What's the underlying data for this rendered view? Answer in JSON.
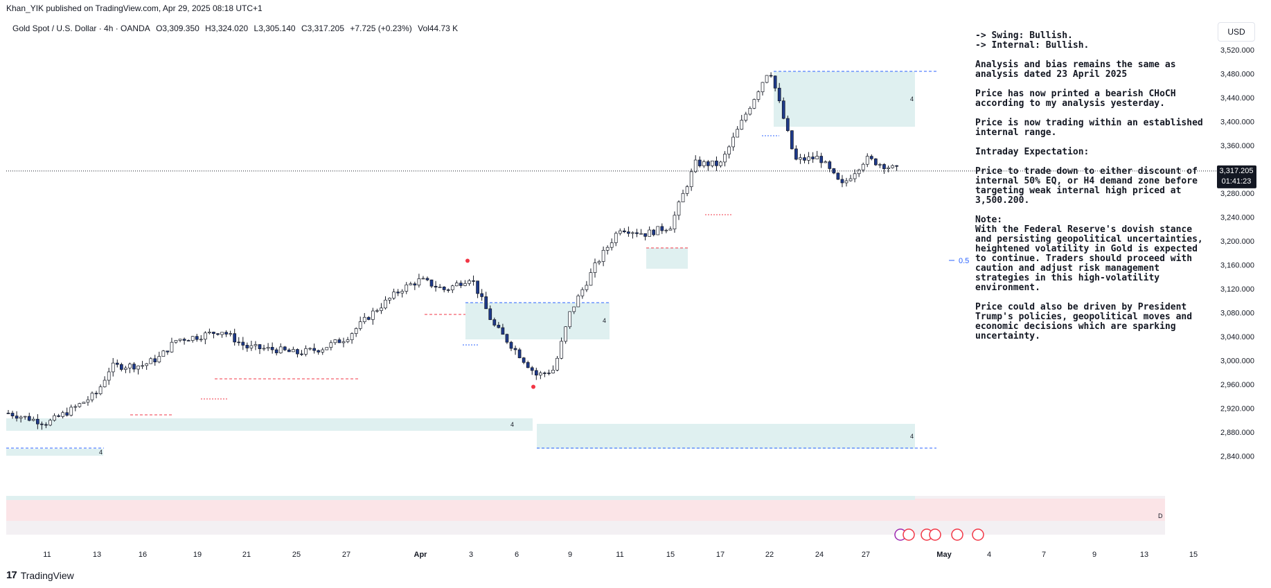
{
  "header": {
    "published_line": "Khan_YIK published on TradingView.com, Apr 29, 2025 08:18 UTC+1"
  },
  "legend": {
    "symbol": "Gold Spot / U.S. Dollar · 4h · OANDA",
    "open": "O3,309.350",
    "high": "H3,324.020",
    "low": "L3,305.140",
    "close": "C3,317.205",
    "change": "+7.725 (+0.23%)",
    "volume": "Vol44.73 K"
  },
  "currency_button": "USD",
  "price_label": {
    "price": "3,317.205",
    "countdown": "01:41:23"
  },
  "fib_label": "0.5",
  "zone_marker": "4",
  "range_marker": "D",
  "notes": [
    "-> Swing:  Bullish.\n-> Internal:  Bullish.",
    "Analysis and bias remains the same as analysis dated 23 April 2025",
    "Price has now printed a bearish CHoCH according to my analysis yesterday.",
    "Price is now trading within an established internal range.",
    "Intraday Expectation:",
    "Price to trade down to either discount of internal 50% EQ, or H4 demand zone before targeting weak internal high priced at 3,500.200.",
    "Note:\nWith the Federal Reserve's dovish stance and persisting geopolitical uncertainties, heightened volatility in Gold is expected to continue. Traders should proceed with caution and adjust risk management strategies in this high-volatility environment.",
    "Price could also be driven by President Trump's policies, geopolitical moves and economic decisions which are sparking uncertainty."
  ],
  "footer": {
    "brand": "TradingView"
  },
  "colors": {
    "up": "#ffffff",
    "down": "#1e3a8a",
    "zone": "#dff0f0",
    "supply_pink": "#fbe2e4",
    "dash_blue": "#2962ff",
    "dash_red": "#f23645"
  },
  "chart_data": {
    "type": "candlestick",
    "timeframe": "4h",
    "y_ticks": [
      3520,
      3480,
      3440,
      3400,
      3360,
      3320,
      3280,
      3240,
      3200,
      3160,
      3120,
      3080,
      3040,
      3000,
      2960,
      2920,
      2880,
      2840
    ],
    "y_tick_labels": [
      "3,520.000",
      "3,480.000",
      "3,440.000",
      "3,400.000",
      "3,360.000",
      "3,320.000",
      "3,280.000",
      "3,240.000",
      "3,200.000",
      "3,160.000",
      "3,120.000",
      "3,080.000",
      "3,040.000",
      "3,000.000",
      "2,960.000",
      "2,920.000",
      "2,880.000",
      "2,840.000"
    ],
    "x_tick_labels": [
      "11",
      "13",
      "16",
      "19",
      "21",
      "25",
      "27",
      "Apr",
      "3",
      "6",
      "9",
      "11",
      "15",
      "17",
      "22",
      "24",
      "27",
      "May",
      "4",
      "7",
      "9",
      "13",
      "15"
    ],
    "ylim": [
      2820,
      3545
    ],
    "last_price": 3317.205,
    "swing_points": [
      {
        "date": "Apr 3",
        "price": 3167,
        "color": "#f23645"
      },
      {
        "date": "Apr 7",
        "price": 2956,
        "color": "#f23645"
      }
    ],
    "path": [
      [
        "Mar 10",
        2912
      ],
      [
        "Mar 11",
        2895
      ],
      [
        "Mar 12",
        2918
      ],
      [
        "Mar 13",
        2945
      ],
      [
        "Mar 14",
        2990
      ],
      [
        "Mar 16",
        2992
      ],
      [
        "Mar 17",
        3005
      ],
      [
        "Mar 18",
        3035
      ],
      [
        "Mar 19",
        3040
      ],
      [
        "Mar 20",
        3050
      ],
      [
        "Mar 21",
        3022
      ],
      [
        "Mar 24",
        3018
      ],
      [
        "Mar 25",
        3012
      ],
      [
        "Mar 26",
        3020
      ],
      [
        "Mar 27",
        3038
      ],
      [
        "Mar 28",
        3082
      ],
      [
        "Mar 31",
        3120
      ],
      [
        "Apr 1",
        3135
      ],
      [
        "Apr 2",
        3118
      ],
      [
        "Apr 3",
        3140
      ],
      [
        "Apr 4",
        3060
      ],
      [
        "Apr 6",
        3015
      ],
      [
        "Apr 7",
        2975
      ],
      [
        "Apr 8",
        2985
      ],
      [
        "Apr 9",
        3080
      ],
      [
        "Apr 10",
        3160
      ],
      [
        "Apr 11",
        3222
      ],
      [
        "Apr 14",
        3212
      ],
      [
        "Apr 15",
        3225
      ],
      [
        "Apr 16",
        3330
      ],
      [
        "Apr 17",
        3328
      ],
      [
        "Apr 21",
        3420
      ],
      [
        "Apr 22",
        3490
      ],
      [
        "Apr 23",
        3335
      ],
      [
        "Apr 24",
        3340
      ],
      [
        "Apr 25",
        3292
      ],
      [
        "Apr 28",
        3338
      ],
      [
        "Apr 29",
        3317
      ]
    ]
  }
}
